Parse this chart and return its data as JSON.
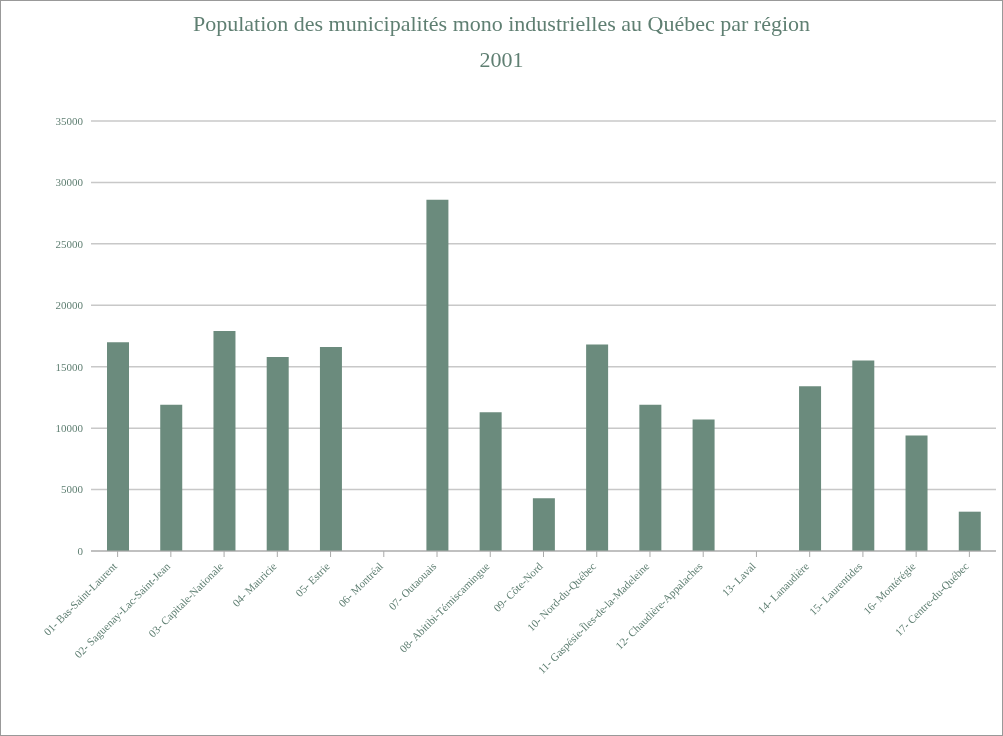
{
  "chart_data": {
    "type": "bar",
    "title": "Population des municipalités mono industrielles au Québec par région",
    "subtitle": "2001",
    "categories": [
      "01- Bas-Saint-Laurent",
      "02- Saguenay-Lac-Saint-Jean",
      "03- Capitale-Nationale",
      "04- Mauricie",
      "05- Estrie",
      "06- Montréal",
      "07- Outaouais",
      "08- Abitibi-Témiscamingue",
      "09- Côte-Nord",
      "10- Nord-du-Québec",
      "11- Gaspésie-Îles-de-la-Madeleine",
      "12- Chaudière-Appalaches",
      "13- Laval",
      "14- Lanaudière",
      "15- Laurentides",
      "16- Montérégie",
      "17- Centre-du-Québec"
    ],
    "values": [
      17000,
      11900,
      17900,
      15800,
      16600,
      0,
      28600,
      11300,
      4300,
      16800,
      11900,
      10700,
      0,
      13400,
      15500,
      9400,
      3200
    ],
    "color": "#6b8b7d",
    "ylim": [
      0,
      35000
    ],
    "yticks": [
      0,
      5000,
      10000,
      15000,
      20000,
      25000,
      30000,
      35000
    ],
    "grid": "y"
  }
}
